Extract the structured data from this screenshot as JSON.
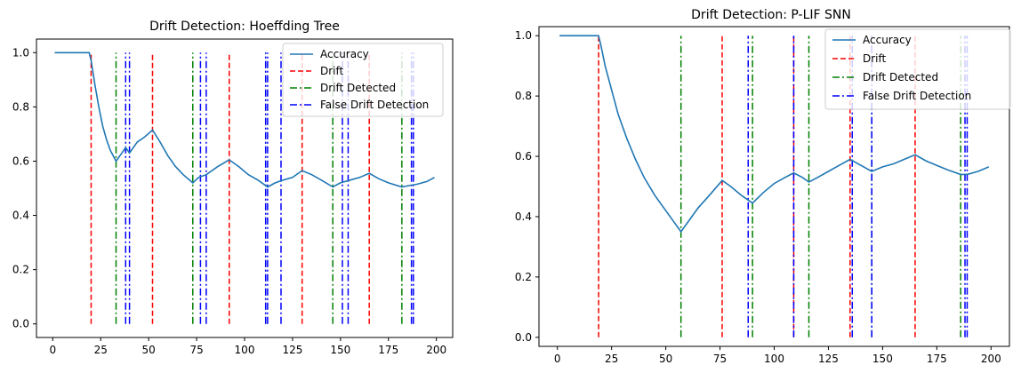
{
  "chart_data": [
    {
      "type": "line",
      "title": "Drift Detection: Hoeffding Tree",
      "xlabel": "",
      "ylabel": "",
      "xlim": [
        -8.5,
        208.5
      ],
      "ylim": [
        -0.05,
        1.05
      ],
      "xticks": [
        0,
        25,
        50,
        75,
        100,
        125,
        150,
        175,
        200
      ],
      "yticks": [
        0.0,
        0.2,
        0.4,
        0.6,
        0.8,
        1.0
      ],
      "grid": false,
      "legend_position": "top-right",
      "legend": [
        "Accuracy",
        "Drift",
        "Drift Detected",
        "False Drift Detection"
      ],
      "colors": {
        "accuracy": "#1f77b4",
        "drift": "#ff0000",
        "drift_detected": "#008000",
        "false_detection": "#0000ff"
      },
      "series": [
        {
          "name": "Accuracy",
          "x": [
            1,
            19,
            20,
            22,
            24,
            26,
            28,
            30,
            33,
            36,
            38,
            40,
            44,
            48,
            52,
            56,
            60,
            64,
            68,
            73,
            76,
            80,
            86,
            92,
            97,
            102,
            107,
            112,
            116,
            120,
            125,
            130,
            135,
            140,
            146,
            150,
            155,
            160,
            165,
            170,
            175,
            182,
            186,
            190,
            195,
            199
          ],
          "y": [
            1.0,
            1.0,
            0.97,
            0.88,
            0.8,
            0.73,
            0.68,
            0.64,
            0.6,
            0.63,
            0.65,
            0.63,
            0.67,
            0.69,
            0.715,
            0.67,
            0.62,
            0.58,
            0.55,
            0.52,
            0.54,
            0.55,
            0.58,
            0.605,
            0.58,
            0.55,
            0.53,
            0.505,
            0.52,
            0.53,
            0.54,
            0.565,
            0.55,
            0.53,
            0.505,
            0.52,
            0.53,
            0.54,
            0.555,
            0.535,
            0.52,
            0.505,
            0.51,
            0.515,
            0.525,
            0.54
          ]
        }
      ],
      "drift_lines": [
        20,
        52,
        92,
        130,
        165
      ],
      "drift_detected_lines": [
        33,
        73,
        111,
        146,
        182
      ],
      "false_drift_detection_lines": [
        38,
        40,
        77,
        80,
        111,
        112,
        119,
        151,
        154,
        187,
        188
      ]
    },
    {
      "type": "line",
      "title": "Drift Detection: P-LIF SNN",
      "xlabel": "",
      "ylabel": "",
      "xlim": [
        -8.5,
        208.5
      ],
      "ylim": [
        -0.03,
        1.03
      ],
      "xticks": [
        0,
        25,
        50,
        75,
        100,
        125,
        150,
        175,
        200
      ],
      "yticks": [
        0.0,
        0.2,
        0.4,
        0.6,
        0.8,
        1.0
      ],
      "grid": false,
      "legend_position": "top-right",
      "legend": [
        "Accuracy",
        "Drift",
        "Drift Detected",
        "False Drift Detection"
      ],
      "colors": {
        "accuracy": "#1f77b4",
        "drift": "#ff0000",
        "drift_detected": "#008000",
        "false_detection": "#0000ff"
      },
      "series": [
        {
          "name": "Accuracy",
          "x": [
            1,
            19,
            20,
            22,
            25,
            28,
            32,
            36,
            40,
            45,
            50,
            54,
            57,
            61,
            65,
            70,
            76,
            80,
            85,
            90,
            95,
            100,
            105,
            109,
            113,
            116,
            120,
            125,
            130,
            135,
            140,
            145,
            150,
            155,
            160,
            165,
            170,
            175,
            180,
            186,
            189,
            194,
            199
          ],
          "y": [
            1.0,
            1.0,
            0.97,
            0.9,
            0.82,
            0.74,
            0.66,
            0.59,
            0.53,
            0.47,
            0.42,
            0.38,
            0.35,
            0.39,
            0.43,
            0.47,
            0.52,
            0.5,
            0.47,
            0.445,
            0.48,
            0.51,
            0.53,
            0.545,
            0.53,
            0.515,
            0.53,
            0.55,
            0.57,
            0.59,
            0.57,
            0.55,
            0.565,
            0.575,
            0.59,
            0.605,
            0.585,
            0.57,
            0.555,
            0.54,
            0.54,
            0.55,
            0.565
          ]
        }
      ],
      "drift_lines": [
        19,
        76,
        109,
        135,
        165
      ],
      "drift_detected_lines": [
        57,
        90,
        116,
        145,
        186
      ],
      "false_drift_detection_lines": [
        88,
        109,
        136,
        145,
        188,
        189
      ]
    }
  ]
}
